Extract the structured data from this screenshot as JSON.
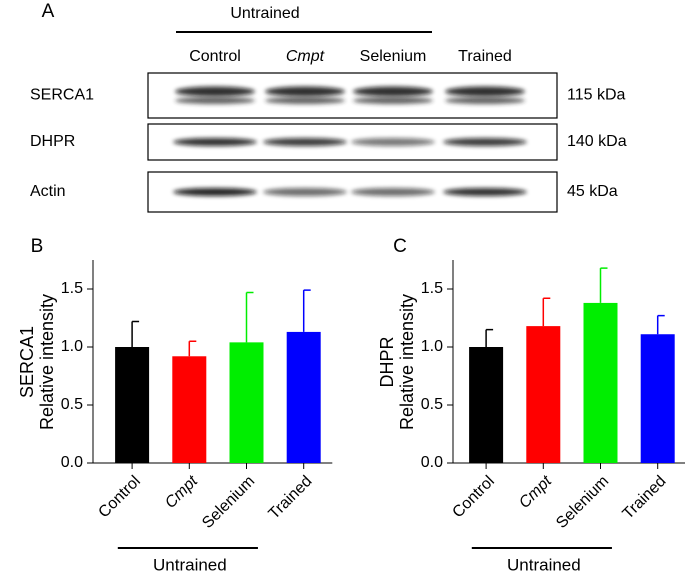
{
  "blot": {
    "panel_label": "A",
    "group_label": "Untrained",
    "lanes": [
      "Control",
      "Cmpt",
      "Selenium",
      "Trained"
    ],
    "rows": [
      {
        "label": "SERCA1",
        "size": "115 kDa"
      },
      {
        "label": "DHPR",
        "size": "140 kDa"
      },
      {
        "label": "Actin",
        "size": "45 kDa"
      }
    ]
  },
  "chart_data": [
    {
      "type": "bar",
      "panel_label": "B",
      "ylabel": [
        "SERCA1",
        "Relative intensity"
      ],
      "group_label": "Untrained",
      "categories": [
        "Control",
        "Cmpt",
        "Selenium",
        "Trained"
      ],
      "values": [
        1.0,
        0.92,
        1.04,
        1.13
      ],
      "errors": [
        0.22,
        0.13,
        0.43,
        0.36
      ],
      "colors": [
        "#000000",
        "#ff0000",
        "#00ee00",
        "#0000ff"
      ],
      "ylim": [
        0,
        1.75
      ],
      "yticks": [
        {
          "value": 0,
          "label": "0.0"
        },
        0.5,
        {
          "value": 1,
          "label": "1.0"
        },
        1.5
      ]
    },
    {
      "type": "bar",
      "panel_label": "C",
      "ylabel": [
        "DHPR",
        "Relative intensity"
      ],
      "group_label": "Untrained",
      "categories": [
        "Control",
        "Cmpt",
        "Selenium",
        "Trained"
      ],
      "values": [
        1.0,
        1.18,
        1.38,
        1.11
      ],
      "errors": [
        0.15,
        0.24,
        0.3,
        0.16
      ],
      "colors": [
        "#000000",
        "#ff0000",
        "#00ee00",
        "#0000ff"
      ],
      "ylim": [
        0,
        1.75
      ],
      "yticks": [
        {
          "value": 0,
          "label": "0.0"
        },
        0.5,
        {
          "value": 1,
          "label": "1.0"
        },
        1.5
      ]
    }
  ]
}
